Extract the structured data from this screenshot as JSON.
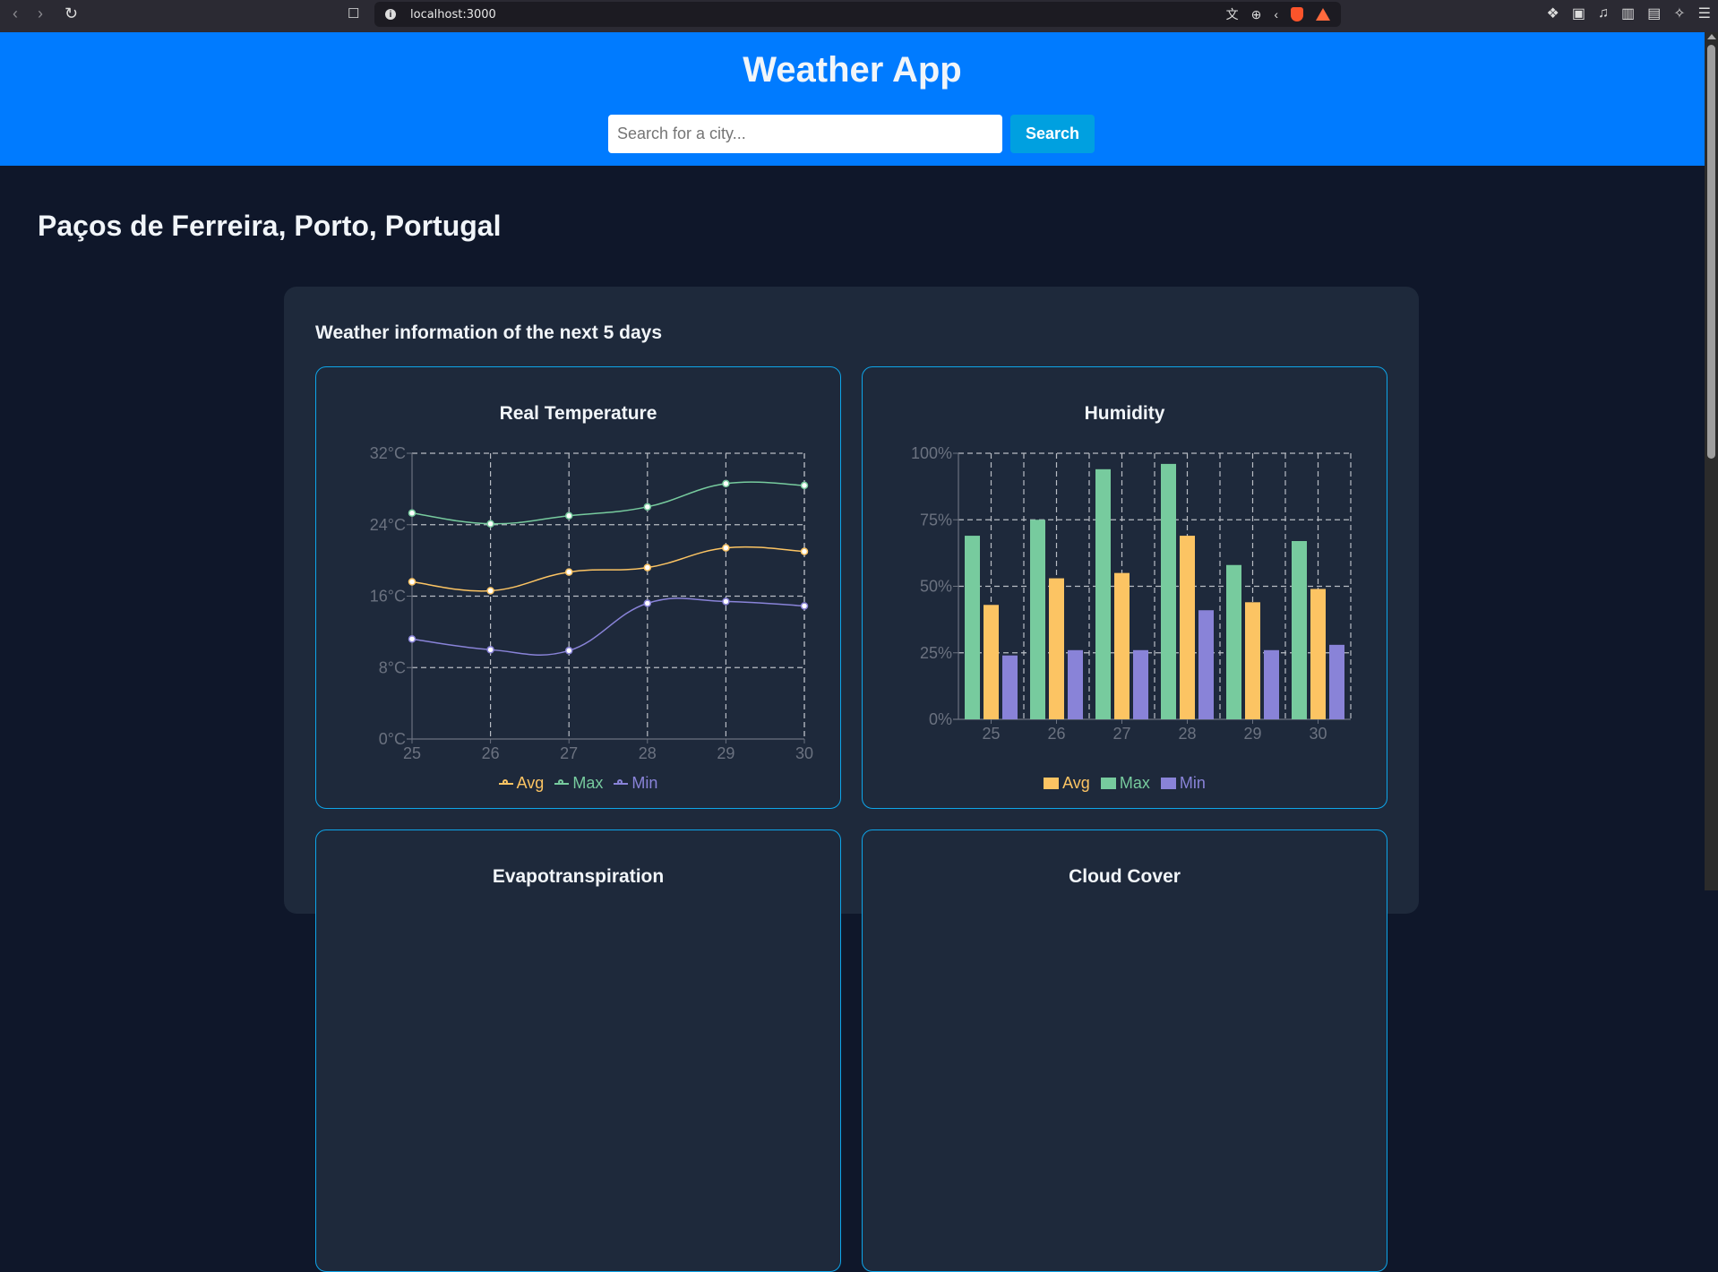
{
  "browser": {
    "url": "localhost:3000",
    "nav_icons": [
      "back-icon",
      "forward-icon",
      "reload-icon",
      "bookmark-icon"
    ],
    "url_icons": [
      "translate-icon",
      "zoom-icon",
      "share-icon",
      "brave-shields-icon",
      "brave-rewards-icon"
    ],
    "toolbar_icons": [
      "extensions-icon",
      "reader-icon",
      "media-icon",
      "sidebar-icon",
      "wallet-icon",
      "leo-ai-icon",
      "menu-icon"
    ]
  },
  "header": {
    "title": "Weather App",
    "search_placeholder": "Search for a city...",
    "search_value": "",
    "search_button": "Search"
  },
  "location": "Paços de Ferreira, Porto, Portugal",
  "section_title": "Weather information of the next 5 days",
  "colors": {
    "header_bg": "#007bff",
    "page_bg": "#0f172a",
    "panel_bg": "#1e293b",
    "card_border": "#0ea5e9",
    "avg": "#fcc463",
    "max": "#77cb9e",
    "min": "#8983d8"
  },
  "cards": [
    {
      "title": "Real Temperature"
    },
    {
      "title": "Humidity"
    },
    {
      "title": "Evapotranspiration"
    },
    {
      "title": "Cloud Cover"
    }
  ],
  "legend": {
    "avg": "Avg",
    "max": "Max",
    "min": "Min"
  },
  "chart_data": [
    {
      "type": "line",
      "title": "Real Temperature",
      "categories": [
        "25",
        "26",
        "27",
        "28",
        "29",
        "30"
      ],
      "series": [
        {
          "name": "Avg",
          "values": [
            17.6,
            16.6,
            18.7,
            19.2,
            21.4,
            21.0
          ]
        },
        {
          "name": "Max",
          "values": [
            25.3,
            24.1,
            25.0,
            26.0,
            28.6,
            28.4
          ]
        },
        {
          "name": "Min",
          "values": [
            11.2,
            10.0,
            9.9,
            15.2,
            15.4,
            14.9
          ]
        }
      ],
      "yticks": [
        "0°C",
        "8°C",
        "16°C",
        "24°C",
        "32°C"
      ],
      "ylim": [
        0,
        32
      ],
      "xlabel": "",
      "ylabel": "",
      "grid": true,
      "legend_position": "bottom"
    },
    {
      "type": "bar",
      "title": "Humidity",
      "categories": [
        "25",
        "26",
        "27",
        "28",
        "29",
        "30"
      ],
      "series": [
        {
          "name": "Max",
          "values": [
            69,
            75,
            94,
            96,
            58,
            67
          ]
        },
        {
          "name": "Avg",
          "values": [
            43,
            53,
            55,
            69,
            44,
            49
          ]
        },
        {
          "name": "Min",
          "values": [
            24,
            26,
            26,
            41,
            26,
            28
          ]
        }
      ],
      "yticks": [
        "0%",
        "25%",
        "50%",
        "75%",
        "100%"
      ],
      "ylim": [
        0,
        100
      ],
      "xlabel": "",
      "ylabel": "",
      "grid": true,
      "legend_position": "bottom",
      "legend_order": [
        "Avg",
        "Max",
        "Min"
      ]
    }
  ]
}
